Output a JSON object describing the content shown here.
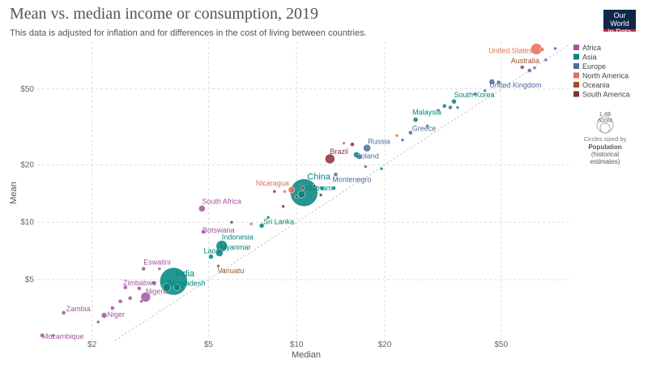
{
  "header": {
    "title": "Mean vs. median income or consumption, 2019",
    "subtitle": "This data is adjusted for inflation and for differences in the cost of living between countries.",
    "logo_line1": "Our World",
    "logo_line2": "in Data"
  },
  "legend": {
    "items": [
      {
        "label": "Africa",
        "color": "#a2559c"
      },
      {
        "label": "Asia",
        "color": "#00847e"
      },
      {
        "label": "Europe",
        "color": "#4c6a9c"
      },
      {
        "label": "North America",
        "color": "#e56e5a"
      },
      {
        "label": "Oceania",
        "color": "#9a5129"
      },
      {
        "label": "South America",
        "color": "#883039"
      }
    ],
    "size_big": "1.4B",
    "size_small": "600M",
    "size_note_1": "Circles sized by",
    "size_note_2": "Population",
    "size_note_3": "(historical",
    "size_note_4": "estimates)"
  },
  "chart_data": {
    "type": "scatter",
    "title": "Mean vs. median income or consumption, 2019",
    "subtitle": "This data is adjusted for inflation and for differences in the cost of living between countries.",
    "xlabel": "Median",
    "ylabel": "Mean",
    "x_scale": "log",
    "y_scale": "log",
    "xlim": [
      1.3,
      85
    ],
    "ylim": [
      2.4,
      88
    ],
    "x_ticks": [
      {
        "v": 2,
        "label": "$2"
      },
      {
        "v": 5,
        "label": "$5"
      },
      {
        "v": 10,
        "label": "$10"
      },
      {
        "v": 20,
        "label": "$20"
      },
      {
        "v": 50,
        "label": "$50"
      }
    ],
    "y_ticks": [
      {
        "v": 5,
        "label": "$5"
      },
      {
        "v": 10,
        "label": "$10"
      },
      {
        "v": 20,
        "label": "$20"
      },
      {
        "v": 50,
        "label": "$50"
      }
    ],
    "grid": true,
    "reference_line": "y = x",
    "legend_position": "right",
    "points": [
      {
        "label": "Mozambique",
        "region": "Africa",
        "x": 1.35,
        "y": 2.55,
        "r": 2.5
      },
      {
        "label": "Zambia",
        "region": "Africa",
        "x": 1.6,
        "y": 3.35,
        "r": 2.5
      },
      {
        "label": "Niger",
        "region": "Africa",
        "x": 2.2,
        "y": 3.25,
        "r": 3.5
      },
      {
        "label": "Nigeria",
        "region": "Africa",
        "x": 3.05,
        "y": 4.05,
        "r": 6
      },
      {
        "label": "Zimbabwe",
        "region": "Africa",
        "x": 2.9,
        "y": 4.5,
        "r": 2.5
      },
      {
        "label": "Eswatini",
        "region": "Africa",
        "x": 3.0,
        "y": 5.7,
        "r": 2.5
      },
      {
        "label": "South Africa",
        "region": "Africa",
        "x": 4.75,
        "y": 11.8,
        "r": 4
      },
      {
        "label": "Botswana",
        "region": "Africa",
        "x": 4.8,
        "y": 8.9,
        "r": 2.5
      },
      {
        "label": "India",
        "region": "Asia",
        "x": 3.8,
        "y": 4.9,
        "r": 17
      },
      {
        "label": "Bangladesh",
        "region": "Asia",
        "x": 3.6,
        "y": 4.55,
        "r": 5
      },
      {
        "label": "Laos",
        "region": "Asia",
        "x": 5.1,
        "y": 6.6,
        "r": 3
      },
      {
        "label": "Myanmar",
        "region": "Asia",
        "x": 5.45,
        "y": 6.9,
        "r": 4.5
      },
      {
        "label": "Indonesia",
        "region": "Asia",
        "x": 5.55,
        "y": 7.5,
        "r": 7
      },
      {
        "label": "Sri Lanka",
        "region": "Asia",
        "x": 7.6,
        "y": 9.6,
        "r": 3
      },
      {
        "label": "Vietnam",
        "region": "Asia",
        "x": 10.4,
        "y": 14.0,
        "r": 4.5
      },
      {
        "label": "China",
        "region": "Asia",
        "x": 10.6,
        "y": 14.3,
        "r": 17
      },
      {
        "label": "Malaysia",
        "region": "Asia",
        "x": 25.5,
        "y": 34.5,
        "r": 3
      },
      {
        "label": "South Korea",
        "region": "Asia",
        "x": 34.5,
        "y": 43.0,
        "r": 3
      },
      {
        "label": "Russia",
        "region": "Europe",
        "x": 17.4,
        "y": 24.5,
        "r": 4.5
      },
      {
        "label": "Poland",
        "region": "Europe",
        "x": 16.4,
        "y": 22.0,
        "r": 3
      },
      {
        "label": "Montenegro",
        "region": "Europe",
        "x": 13.6,
        "y": 17.8,
        "r": 2.5
      },
      {
        "label": "Greece",
        "region": "Europe",
        "x": 24.5,
        "y": 29.5,
        "r": 2.5
      },
      {
        "label": "United Kingdom",
        "region": "Europe",
        "x": 46.5,
        "y": 54.5,
        "r": 3.5
      },
      {
        "label": "Nicaragua",
        "region": "North America",
        "x": 9.6,
        "y": 14.8,
        "r": 4
      },
      {
        "label": "United States",
        "region": "North America",
        "x": 66,
        "y": 81,
        "r": 7
      },
      {
        "label": "Vanuatu",
        "region": "Oceania",
        "x": 5.4,
        "y": 5.9,
        "r": 2
      },
      {
        "label": "Australia",
        "region": "Oceania",
        "x": 59,
        "y": 65,
        "r": 2.5
      },
      {
        "label": "Brazil",
        "region": "South America",
        "x": 13.0,
        "y": 21.5,
        "r": 6
      },
      {
        "label": "",
        "region": "Africa",
        "x": 1.47,
        "y": 2.55,
        "r": 2
      },
      {
        "label": "",
        "region": "Africa",
        "x": 2.1,
        "y": 3.0,
        "r": 2
      },
      {
        "label": "",
        "region": "Africa",
        "x": 2.35,
        "y": 3.55,
        "r": 2.5
      },
      {
        "label": "",
        "region": "Africa",
        "x": 2.5,
        "y": 3.85,
        "r": 2.5
      },
      {
        "label": "",
        "region": "Africa",
        "x": 2.7,
        "y": 4.0,
        "r": 2.5
      },
      {
        "label": "",
        "region": "Africa",
        "x": 2.6,
        "y": 4.55,
        "r": 2.5
      },
      {
        "label": "",
        "region": "Africa",
        "x": 3.25,
        "y": 4.8,
        "r": 2.5
      },
      {
        "label": "",
        "region": "Africa",
        "x": 3.4,
        "y": 5.7,
        "r": 2
      },
      {
        "label": "",
        "region": "Africa",
        "x": 2.95,
        "y": 3.85,
        "r": 2
      },
      {
        "label": "",
        "region": "Asia",
        "x": 3.9,
        "y": 4.55,
        "r": 4
      },
      {
        "label": "",
        "region": "Asia",
        "x": 8.0,
        "y": 10.6,
        "r": 2
      },
      {
        "label": "",
        "region": "Asia",
        "x": 12.2,
        "y": 15.1,
        "r": 2.5
      },
      {
        "label": "",
        "region": "Asia",
        "x": 13.4,
        "y": 15.1,
        "r": 2.5
      },
      {
        "label": "",
        "region": "Asia",
        "x": 16.0,
        "y": 22.6,
        "r": 3.5
      },
      {
        "label": "",
        "region": "Asia",
        "x": 19.5,
        "y": 19.1,
        "r": 2
      },
      {
        "label": "",
        "region": "Asia",
        "x": 32.0,
        "y": 40.7,
        "r": 2.5
      },
      {
        "label": "",
        "region": "Europe",
        "x": 17.2,
        "y": 19.6,
        "r": 2
      },
      {
        "label": "",
        "region": "Europe",
        "x": 28.0,
        "y": 32.0,
        "r": 2
      },
      {
        "label": "",
        "region": "Europe",
        "x": 30.5,
        "y": 38.7,
        "r": 2
      },
      {
        "label": "",
        "region": "Europe",
        "x": 33.5,
        "y": 40.0,
        "r": 2.5
      },
      {
        "label": "",
        "region": "Europe",
        "x": 35.5,
        "y": 40.0,
        "r": 2
      },
      {
        "label": "",
        "region": "Europe",
        "x": 40.5,
        "y": 47.0,
        "r": 2
      },
      {
        "label": "",
        "region": "Europe",
        "x": 44.0,
        "y": 49.0,
        "r": 2
      },
      {
        "label": "",
        "region": "Europe",
        "x": 49.0,
        "y": 54.2,
        "r": 2.5
      },
      {
        "label": "",
        "region": "Europe",
        "x": 62.5,
        "y": 62.5,
        "r": 2.5
      },
      {
        "label": "",
        "region": "Europe",
        "x": 71.0,
        "y": 71.0,
        "r": 2
      },
      {
        "label": "",
        "region": "Europe",
        "x": 76.5,
        "y": 81.5,
        "r": 2
      },
      {
        "label": "",
        "region": "Europe",
        "x": 65.0,
        "y": 64.5,
        "r": 2
      },
      {
        "label": "",
        "region": "Europe",
        "x": 23.0,
        "y": 27.0,
        "r": 2
      },
      {
        "label": "",
        "region": "North America",
        "x": 7.0,
        "y": 9.8,
        "r": 2
      },
      {
        "label": "",
        "region": "North America",
        "x": 9.1,
        "y": 14.5,
        "r": 2
      },
      {
        "label": "",
        "region": "North America",
        "x": 14.5,
        "y": 26.0,
        "r": 2
      },
      {
        "label": "",
        "region": "North America",
        "x": 22.0,
        "y": 28.5,
        "r": 2
      },
      {
        "label": "",
        "region": "North America",
        "x": 69.0,
        "y": 80.5,
        "r": 2.5
      },
      {
        "label": "",
        "region": "South America",
        "x": 8.4,
        "y": 14.5,
        "r": 2
      },
      {
        "label": "",
        "region": "South America",
        "x": 12.1,
        "y": 13.9,
        "r": 2
      },
      {
        "label": "",
        "region": "South America",
        "x": 9.0,
        "y": 12.1,
        "r": 2
      },
      {
        "label": "",
        "region": "South America",
        "x": 10.0,
        "y": 13.6,
        "r": 2
      },
      {
        "label": "",
        "region": "South America",
        "x": 15.5,
        "y": 25.6,
        "r": 2.5
      },
      {
        "label": "",
        "region": "South America",
        "x": 11.5,
        "y": 15.5,
        "r": 2
      },
      {
        "label": "",
        "region": "South America",
        "x": 6.0,
        "y": 10.0,
        "r": 2
      },
      {
        "label": "",
        "region": "South America",
        "x": 10.5,
        "y": 15.2,
        "r": 2
      }
    ]
  }
}
